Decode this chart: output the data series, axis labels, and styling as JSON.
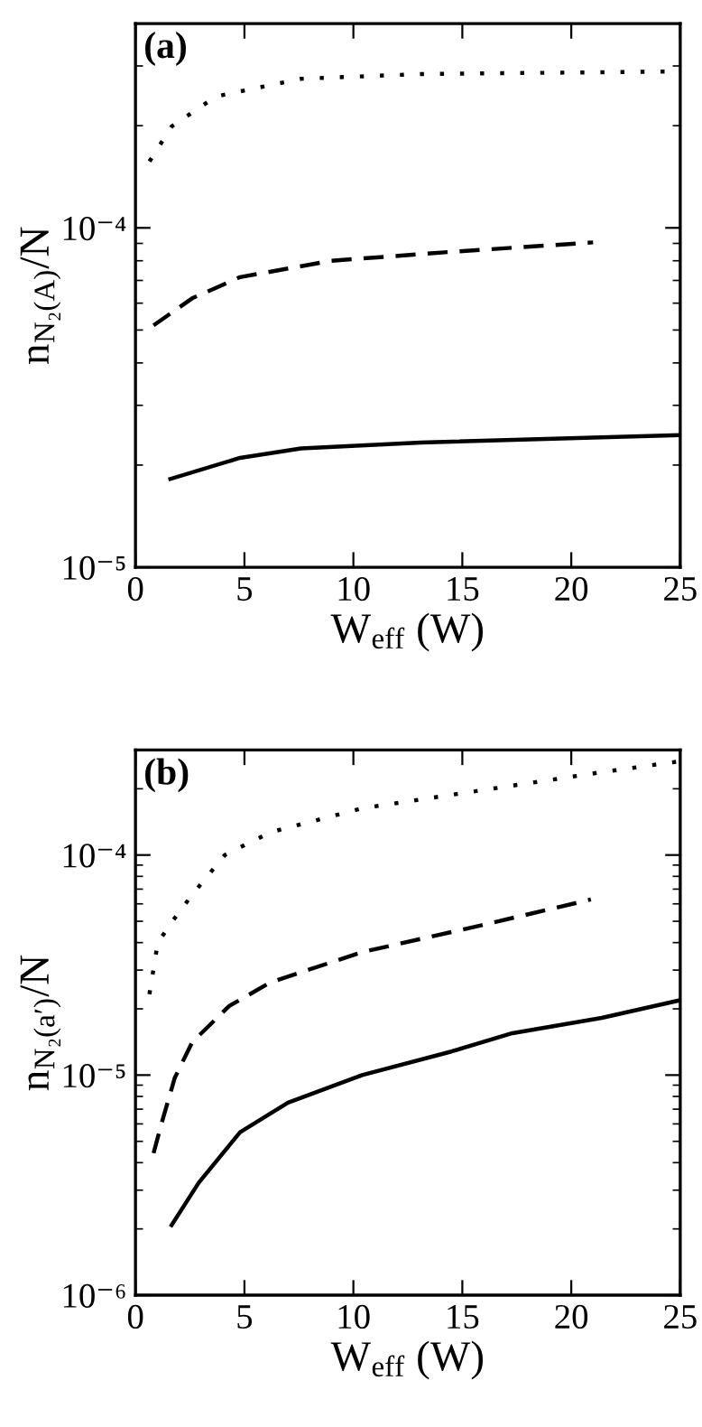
{
  "chart_data": [
    {
      "type": "line",
      "annotations": [
        "(a)"
      ],
      "xlabel": "W$_{eff}$ (W)",
      "ylabel": "n$_{N₂(A)}$/N",
      "log": "y",
      "xlim": [
        0,
        25
      ],
      "xticks": [
        0,
        5,
        10,
        15,
        20,
        25
      ],
      "ylim": [
        1e-05,
        0.0004
      ],
      "yticks": [
        {
          "value": 1e-05,
          "label": "10⁻⁵"
        },
        {
          "value": 0.0001,
          "label": "10⁻⁴"
        }
      ],
      "grid": false,
      "legend": false,
      "marker": "none",
      "series": [
        {
          "color": "#000000",
          "line_style": "dotted",
          "x": [
            0.64,
            1.66,
            3.7,
            7.6,
            13.1,
            25
          ],
          "values": [
            0.000157,
            0.000199,
            0.000244,
            0.000275,
            0.000284,
            0.000289
          ]
        },
        {
          "color": "#000000",
          "line_style": "dashed",
          "x": [
            0.83,
            2.6,
            4.8,
            9.0,
            14.5,
            21.0
          ],
          "values": [
            5.16e-05,
            6.2e-05,
            7.16e-05,
            8e-05,
            8.5e-05,
            9.06e-05
          ]
        },
        {
          "color": "#000000",
          "line_style": "solid",
          "x": [
            1.6,
            4.8,
            7.6,
            13.1,
            25
          ],
          "values": [
            1.82e-05,
            2.1e-05,
            2.24e-05,
            2.33e-05,
            2.45e-05
          ]
        }
      ]
    },
    {
      "type": "line",
      "annotations": [
        "(b)"
      ],
      "xlabel": "W$_{eff}$ (W)",
      "ylabel": "n$_{N₂(a′)}$/N",
      "log": "y",
      "xlim": [
        0,
        25
      ],
      "xticks": [
        0,
        5,
        10,
        15,
        20,
        25
      ],
      "ylim": [
        1e-06,
        0.0003
      ],
      "yticks": [
        {
          "value": 1e-06,
          "label": "10⁻⁶"
        },
        {
          "value": 1e-05,
          "label": "10⁻⁵"
        },
        {
          "value": 0.0001,
          "label": "10⁻⁴"
        }
      ],
      "grid": false,
      "legend": false,
      "marker": "none",
      "series": [
        {
          "color": "#000000",
          "line_style": "dotted",
          "x": [
            0.64,
            1.02,
            1.66,
            2.6,
            4.1,
            6.2,
            10.4,
            15.9,
            21.4,
            24.9
          ],
          "values": [
            2.33e-05,
            3.98e-05,
            4.95e-05,
            6.6e-05,
            0.0001,
            0.000127,
            0.000163,
            0.000197,
            0.000238,
            0.000266
          ]
        },
        {
          "color": "#000000",
          "line_style": "dashed",
          "x": [
            0.83,
            1.24,
            1.8,
            2.6,
            4.3,
            6.2,
            10.4,
            15.9,
            20.9
          ],
          "values": [
            4.42e-06,
            6.25e-06,
            9.7e-06,
            1.41e-05,
            2.06e-05,
            2.64e-05,
            3.62e-05,
            4.8e-05,
            6.28e-05
          ]
        },
        {
          "color": "#000000",
          "line_style": "solid",
          "x": [
            1.66,
            2.9,
            4.8,
            7.0,
            10.4,
            14.5,
            17.3,
            21.4,
            25
          ],
          "values": [
            2.08e-06,
            3.24e-06,
            5.5e-06,
            7.5e-06,
            1e-05,
            1.28e-05,
            1.55e-05,
            1.82e-05,
            2.19e-05
          ]
        }
      ]
    }
  ]
}
